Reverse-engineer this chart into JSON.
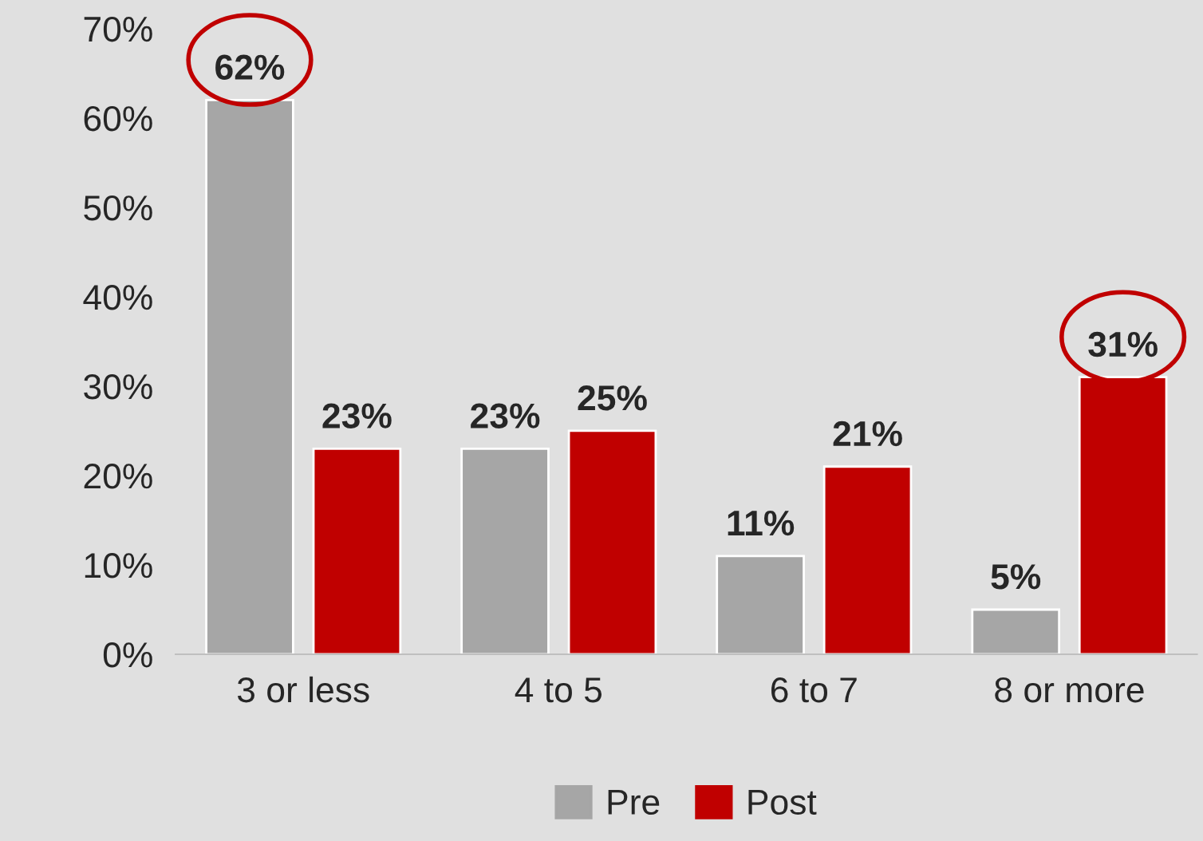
{
  "chart_data": {
    "type": "bar",
    "categories": [
      "3 or less",
      "4 to 5",
      "6 to 7",
      "8 or more"
    ],
    "series": [
      {
        "name": "Pre",
        "color": "#a6a6a6",
        "values": [
          62,
          23,
          11,
          5
        ]
      },
      {
        "name": "Post",
        "color": "#c00000",
        "values": [
          23,
          25,
          21,
          31
        ]
      }
    ],
    "ylim": [
      0,
      70
    ],
    "yticks": [
      {
        "value": 0,
        "label": "0%"
      },
      {
        "value": 10,
        "label": "10%"
      },
      {
        "value": 20,
        "label": "20%"
      },
      {
        "value": 30,
        "label": "30%"
      },
      {
        "value": 40,
        "label": "40%"
      },
      {
        "value": 50,
        "label": "50%"
      },
      {
        "value": 60,
        "label": "60%"
      },
      {
        "value": 70,
        "label": "70%"
      }
    ],
    "value_labels": [
      [
        "62%",
        "23%",
        "11%",
        "5%"
      ],
      [
        "23%",
        "25%",
        "21%",
        "31%"
      ]
    ],
    "grid": false,
    "legend": "bottom"
  }
}
